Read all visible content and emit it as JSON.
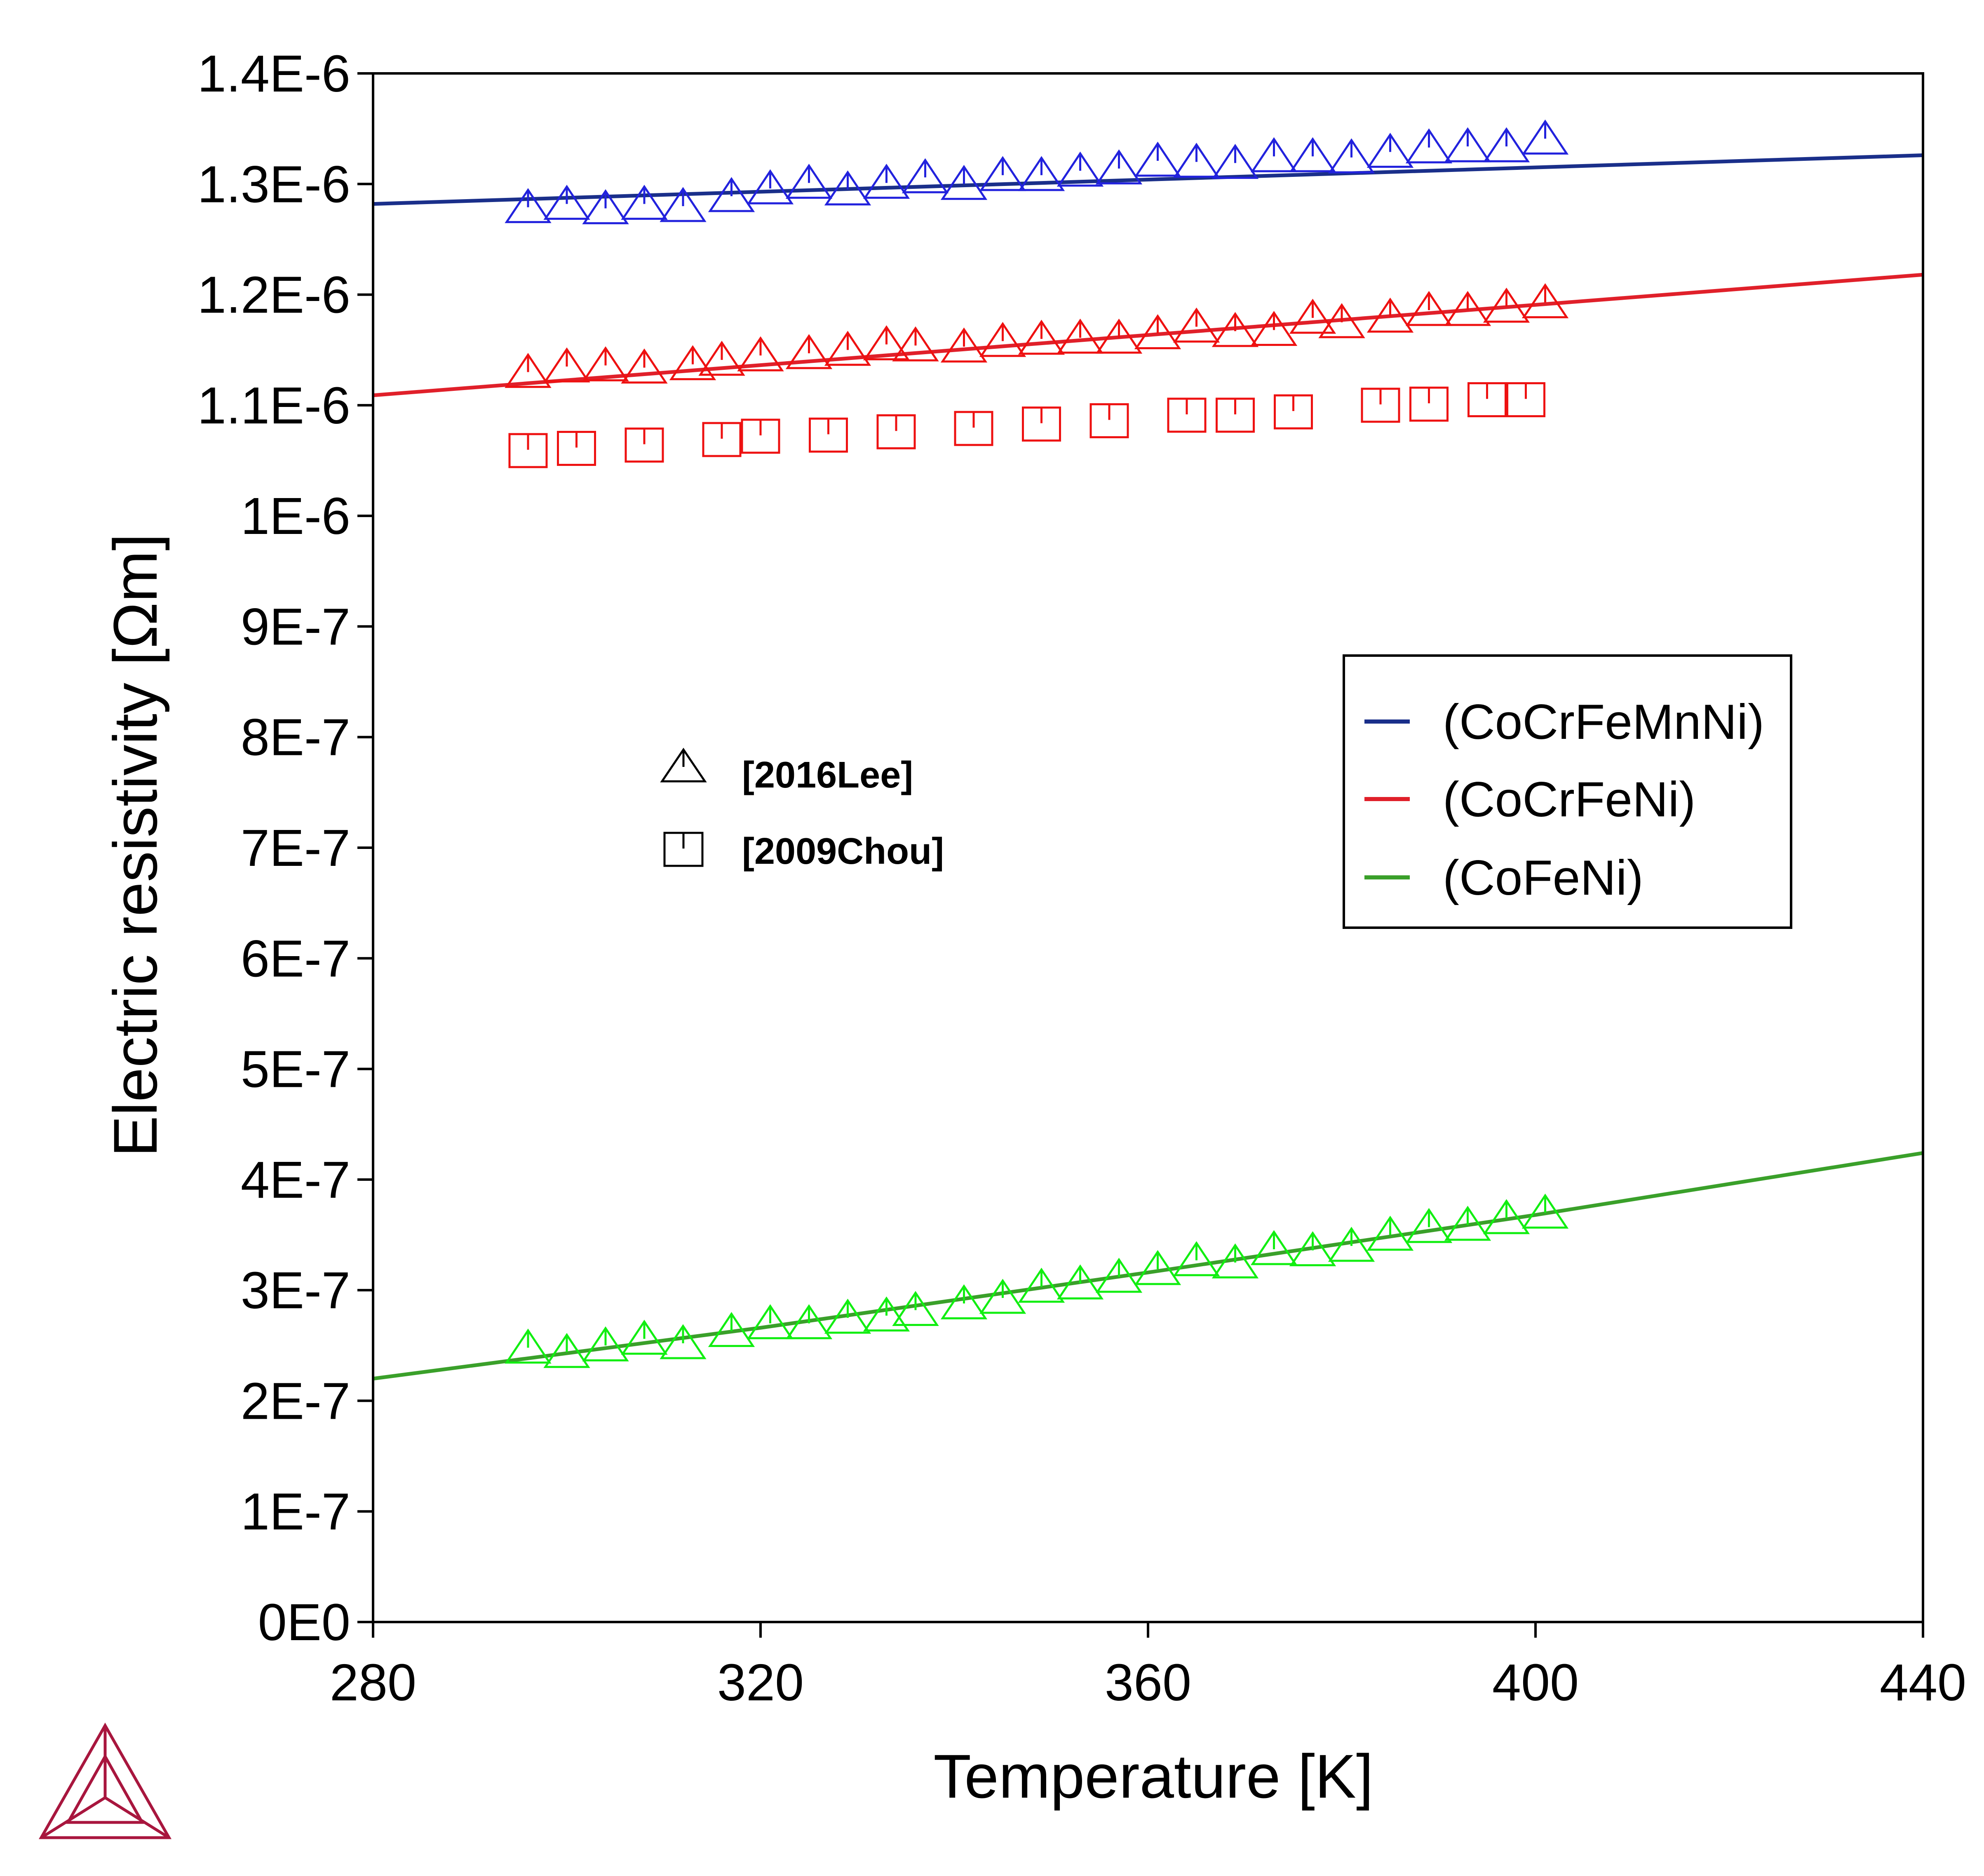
{
  "chart_data": {
    "type": "scatter",
    "xlabel": "Temperature [K]",
    "ylabel": "Electric resistivity [Ωm]",
    "xlim": [
      280,
      440
    ],
    "ylim": [
      0,
      1.4e-06
    ],
    "x_ticks": [
      "280",
      "320",
      "360",
      "400",
      "440"
    ],
    "x_tick_values": [
      280,
      320,
      360,
      400,
      440
    ],
    "y_ticks": [
      "0E0",
      "1E-7",
      "2E-7",
      "3E-7",
      "4E-7",
      "5E-7",
      "6E-7",
      "7E-7",
      "8E-7",
      "9E-7",
      "1E-6",
      "1.1E-6",
      "1.2E-6",
      "1.3E-6",
      "1.4E-6"
    ],
    "y_tick_values": [
      0,
      1e-07,
      2e-07,
      3e-07,
      4e-07,
      5e-07,
      6e-07,
      7e-07,
      8e-07,
      9e-07,
      1e-06,
      1.1e-06,
      1.2e-06,
      1.3e-06,
      1.4e-06
    ],
    "grid": false,
    "legend": {
      "placement": "right",
      "entries": [
        {
          "label": "(CoCrFeMnNi)",
          "color": "#1a2f8a"
        },
        {
          "label": "(CoCrFeNi)",
          "color": "#e0202a"
        },
        {
          "label": "(CoFeNi)",
          "color": "#3aa02a"
        }
      ]
    },
    "marker_legend": [
      {
        "marker": "triangle",
        "label": "[2016Lee]"
      },
      {
        "marker": "square",
        "label": "[2009Chou]"
      }
    ],
    "lines": [
      {
        "name": "(CoCrFeMnNi)",
        "color": "#1a2f8a",
        "x": [
          280,
          440
        ],
        "y": [
          1.282e-06,
          1.326e-06
        ]
      },
      {
        "name": "(CoCrFeNi)",
        "color": "#e0202a",
        "x": [
          280,
          440
        ],
        "y": [
          1.109e-06,
          1.218e-06
        ]
      },
      {
        "name": "(CoFeNi)",
        "color": "#3aa02a",
        "x": [
          280,
          320,
          360,
          400,
          440
        ],
        "y": [
          2.2e-07,
          2.66e-07,
          3.16e-07,
          3.68e-07,
          4.24e-07
        ]
      }
    ],
    "points": [
      {
        "marker": "triangle",
        "color": "#2222dd",
        "x": [
          296,
          300,
          304,
          308,
          312,
          317,
          321,
          325,
          329,
          333,
          337,
          341,
          345,
          349,
          353,
          357,
          361,
          365,
          369,
          373,
          377,
          381,
          385,
          389,
          393,
          397,
          401
        ],
        "y": [
          1.276e-06,
          1.279e-06,
          1.275e-06,
          1.279e-06,
          1.277e-06,
          1.286e-06,
          1.293e-06,
          1.298e-06,
          1.292e-06,
          1.298e-06,
          1.303e-06,
          1.297e-06,
          1.305e-06,
          1.305e-06,
          1.309e-06,
          1.311e-06,
          1.318e-06,
          1.317e-06,
          1.316e-06,
          1.322e-06,
          1.322e-06,
          1.321e-06,
          1.326e-06,
          1.33e-06,
          1.331e-06,
          1.331e-06,
          1.338e-06
        ]
      },
      {
        "marker": "triangle",
        "color": "#ee1111",
        "x": [
          296,
          300,
          304,
          308,
          313,
          316,
          320,
          325,
          329,
          333,
          336,
          341,
          345,
          349,
          353,
          357,
          361,
          365,
          369,
          373,
          377,
          380,
          385,
          389,
          393,
          397,
          401
        ],
        "y": [
          1.127e-06,
          1.132e-06,
          1.133e-06,
          1.131e-06,
          1.134e-06,
          1.138e-06,
          1.142e-06,
          1.144e-06,
          1.147e-06,
          1.152e-06,
          1.151e-06,
          1.15e-06,
          1.155e-06,
          1.157e-06,
          1.158e-06,
          1.158e-06,
          1.162e-06,
          1.168e-06,
          1.164e-06,
          1.165e-06,
          1.176e-06,
          1.172e-06,
          1.177e-06,
          1.183e-06,
          1.183e-06,
          1.186e-06,
          1.19e-06
        ]
      },
      {
        "marker": "square",
        "color": "#ee1111",
        "x": [
          296,
          301,
          308,
          316,
          320,
          327,
          334,
          342,
          349,
          356,
          364,
          369,
          375,
          384,
          389,
          395,
          399
        ],
        "y": [
          1.059e-06,
          1.061e-06,
          1.064e-06,
          1.069e-06,
          1.072e-06,
          1.073e-06,
          1.076e-06,
          1.079e-06,
          1.083e-06,
          1.086e-06,
          1.091e-06,
          1.091e-06,
          1.094e-06,
          1.1e-06,
          1.101e-06,
          1.105e-06,
          1.105e-06
        ]
      },
      {
        "marker": "triangle",
        "color": "#11ee11",
        "x": [
          296,
          300,
          304,
          308,
          312,
          317,
          321,
          325,
          329,
          333,
          336,
          341,
          345,
          349,
          353,
          357,
          361,
          365,
          369,
          373,
          377,
          381,
          385,
          389,
          393,
          397,
          401
        ],
        "y": [
          2.45e-07,
          2.41e-07,
          2.47e-07,
          2.53e-07,
          2.49e-07,
          2.6e-07,
          2.67e-07,
          2.67e-07,
          2.72e-07,
          2.74e-07,
          2.79e-07,
          2.85e-07,
          2.9e-07,
          3e-07,
          3.03e-07,
          3.09e-07,
          3.16e-07,
          3.24e-07,
          3.22e-07,
          3.34e-07,
          3.33e-07,
          3.37e-07,
          3.47e-07,
          3.54e-07,
          3.56e-07,
          3.62e-07,
          3.67e-07
        ]
      }
    ]
  }
}
